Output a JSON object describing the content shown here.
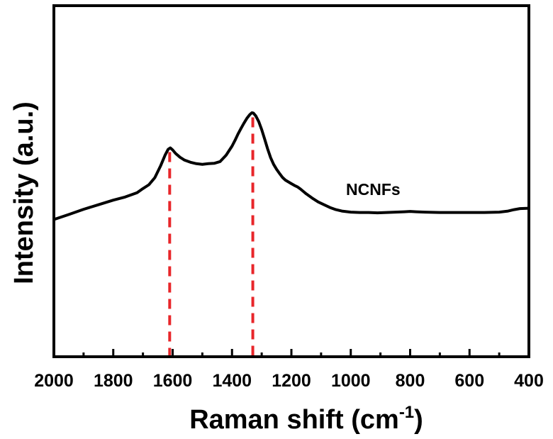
{
  "chart_data": {
    "type": "line",
    "title": "",
    "xlabel": "Raman shift (cm",
    "xlabel_sup": "-1",
    "xlabel_end": ")",
    "ylabel": "Intensity (a.u.)",
    "xlim": [
      2000,
      400
    ],
    "x_reversed": true,
    "ylim": [
      0,
      1
    ],
    "y_ticks_shown": false,
    "grid": false,
    "legend": "none",
    "x_ticks": [
      "2000",
      "1800",
      "1600",
      "1400",
      "1200",
      "1000",
      "800",
      "600",
      "400"
    ],
    "annotation": "NCNFs",
    "reference_lines": [
      1610,
      1330
    ],
    "reference_line_color": "#e8262a",
    "line_color": "#000000",
    "series": [
      {
        "name": "NCNFs",
        "x": [
          2000,
          1950,
          1900,
          1850,
          1800,
          1760,
          1720,
          1700,
          1680,
          1660,
          1640,
          1625,
          1615,
          1608,
          1600,
          1590,
          1575,
          1560,
          1540,
          1520,
          1500,
          1480,
          1460,
          1440,
          1420,
          1400,
          1390,
          1380,
          1370,
          1360,
          1350,
          1340,
          1333,
          1328,
          1320,
          1310,
          1300,
          1290,
          1280,
          1270,
          1260,
          1250,
          1240,
          1230,
          1220,
          1210,
          1200,
          1190,
          1180,
          1170,
          1160,
          1150,
          1130,
          1110,
          1090,
          1070,
          1050,
          1030,
          1000,
          970,
          940,
          910,
          880,
          850,
          820,
          800,
          780,
          750,
          700,
          650,
          600,
          550,
          500,
          470,
          450,
          430,
          400
        ],
        "y": [
          0.391,
          0.405,
          0.42,
          0.433,
          0.446,
          0.455,
          0.467,
          0.479,
          0.49,
          0.51,
          0.545,
          0.575,
          0.591,
          0.595,
          0.589,
          0.579,
          0.568,
          0.56,
          0.554,
          0.55,
          0.548,
          0.55,
          0.551,
          0.556,
          0.574,
          0.6,
          0.616,
          0.634,
          0.65,
          0.665,
          0.679,
          0.69,
          0.695,
          0.694,
          0.686,
          0.67,
          0.647,
          0.62,
          0.592,
          0.567,
          0.548,
          0.534,
          0.522,
          0.511,
          0.503,
          0.498,
          0.493,
          0.488,
          0.484,
          0.478,
          0.471,
          0.464,
          0.452,
          0.441,
          0.433,
          0.425,
          0.419,
          0.415,
          0.412,
          0.411,
          0.411,
          0.41,
          0.411,
          0.412,
          0.413,
          0.414,
          0.413,
          0.412,
          0.411,
          0.411,
          0.411,
          0.411,
          0.412,
          0.415,
          0.419,
          0.422,
          0.423
        ]
      }
    ]
  }
}
